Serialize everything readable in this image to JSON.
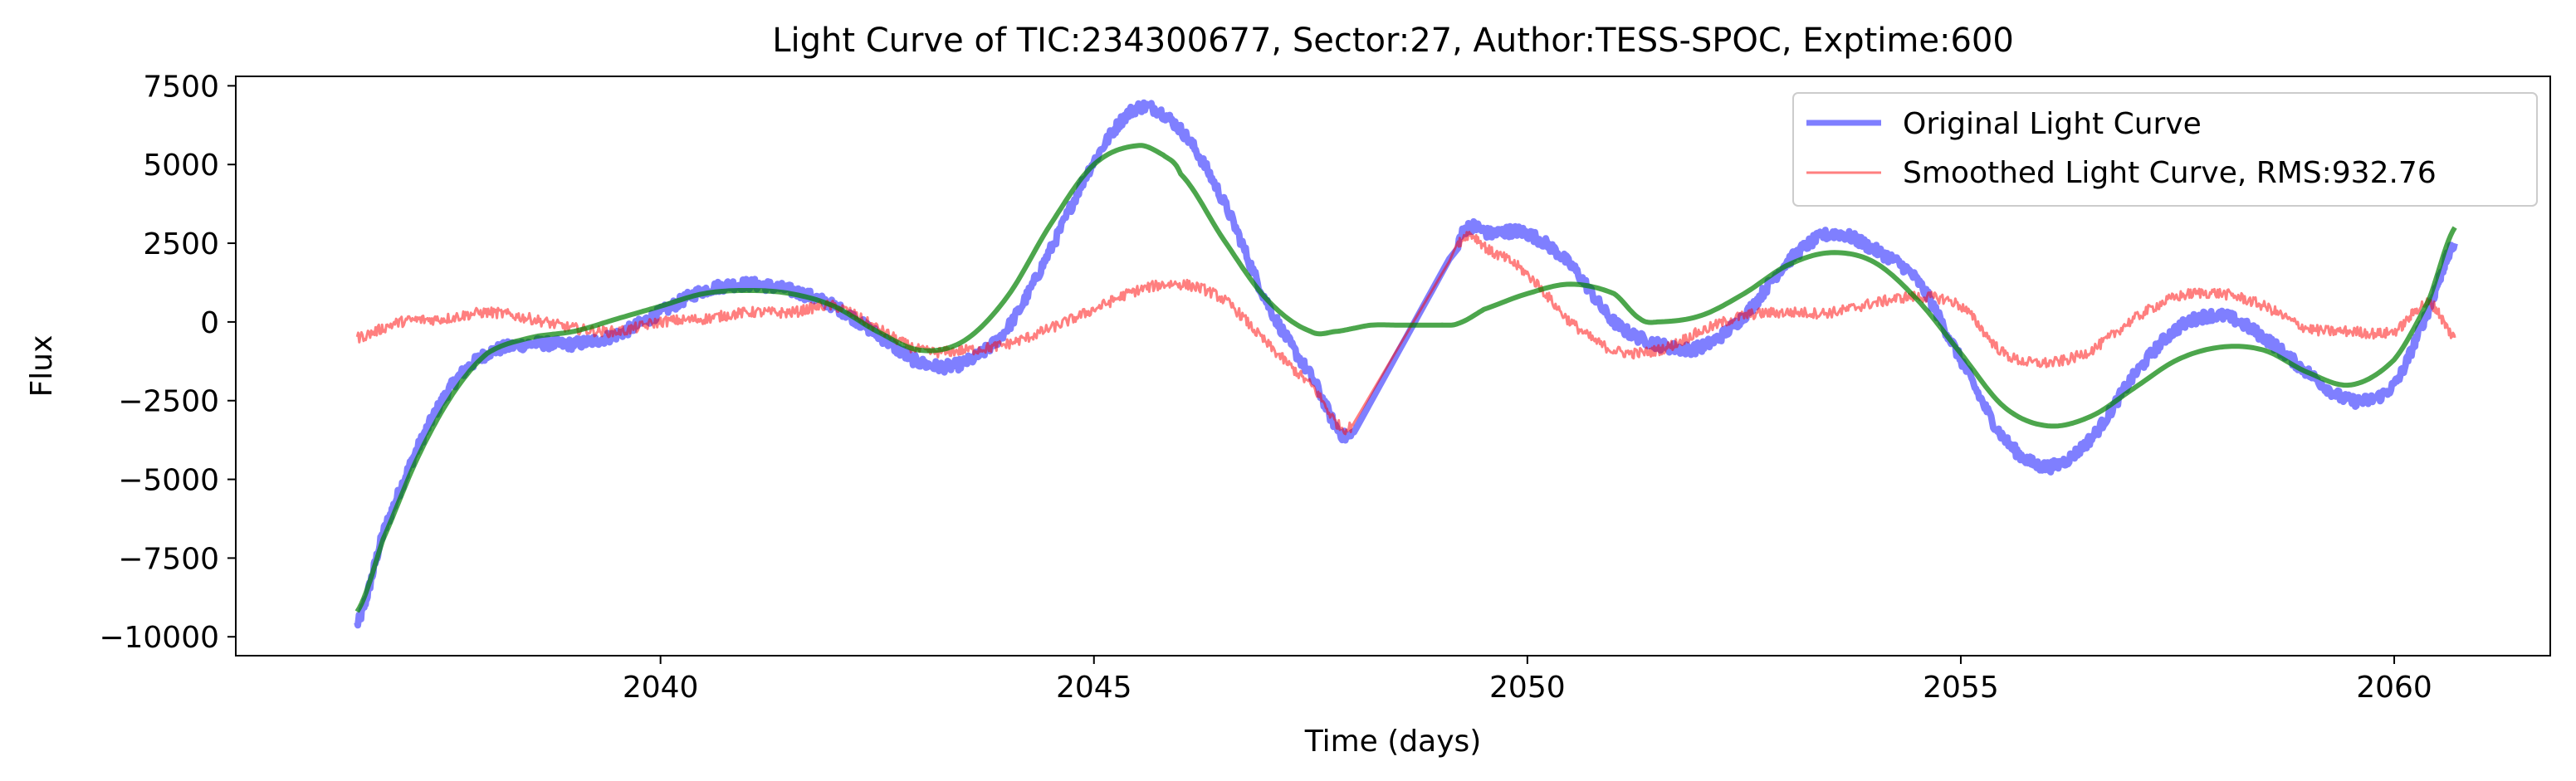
{
  "chart_data": {
    "type": "line",
    "title": "Light Curve of TIC:234300677, Sector:27, Author:TESS-SPOC, Exptime:600",
    "xlabel": "Time (days)",
    "ylabel": "Flux",
    "xlim": [
      2035.1,
      2061.8
    ],
    "ylim": [
      -10600,
      7800
    ],
    "xticks": [
      2040,
      2045,
      2050,
      2055,
      2060
    ],
    "xtick_labels": [
      "2040",
      "2045",
      "2050",
      "2055",
      "2060"
    ],
    "yticks": [
      -10000,
      -7500,
      -5000,
      -2500,
      0,
      2500,
      5000,
      7500
    ],
    "ytick_labels": [
      "−10000",
      "−7500",
      "−5000",
      "−2500",
      "0",
      "2500",
      "5000",
      "7500"
    ],
    "grid": false,
    "legend_position": "top-right",
    "series": [
      {
        "name": "Original Light Curve",
        "color": "#0000ff",
        "opacity": 0.5,
        "noise": 180,
        "x": [
          2036.5,
          2036.8,
          2037.2,
          2037.6,
          2038.0,
          2038.5,
          2039.0,
          2039.5,
          2040.0,
          2040.5,
          2041.0,
          2041.5,
          2042.0,
          2042.5,
          2043.0,
          2043.5,
          2044.0,
          2044.5,
          2045.0,
          2045.5,
          2046.0,
          2046.5,
          2047.0,
          2047.5,
          2048.0,
          2049.2,
          2049.6,
          2050.0,
          2050.5,
          2051.0,
          2051.5,
          2052.0,
          2052.5,
          2053.0,
          2053.5,
          2054.0,
          2054.5,
          2055.0,
          2055.5,
          2056.0,
          2056.5,
          2057.0,
          2057.5,
          2058.0,
          2058.5,
          2059.0,
          2059.5,
          2060.0,
          2060.4,
          2060.7
        ],
        "y": [
          -9600,
          -6700,
          -4000,
          -2000,
          -1000,
          -700,
          -700,
          -400,
          300,
          1000,
          1200,
          1000,
          500,
          -400,
          -1300,
          -1300,
          -200,
          2300,
          5100,
          6800,
          6100,
          3800,
          600,
          -1700,
          -3500,
          2500,
          2800,
          2800,
          1800,
          0,
          -700,
          -800,
          200,
          1900,
          2800,
          2300,
          1300,
          -1200,
          -3700,
          -4600,
          -3700,
          -1700,
          -200,
          200,
          -500,
          -1600,
          -2500,
          -2000,
          400,
          2500
        ]
      },
      {
        "name": "Smoothed Light Curve, RMS:932.76",
        "color": "#ff0000",
        "opacity": 0.5,
        "noise": 170,
        "x": [
          2036.5,
          2037.0,
          2037.5,
          2038.0,
          2038.5,
          2039.0,
          2039.5,
          2040.0,
          2040.5,
          2041.0,
          2041.5,
          2042.0,
          2042.5,
          2043.0,
          2043.5,
          2044.0,
          2044.5,
          2045.0,
          2045.5,
          2046.0,
          2046.5,
          2047.0,
          2047.5,
          2048.0,
          2049.2,
          2049.6,
          2050.0,
          2050.5,
          2051.0,
          2051.5,
          2052.0,
          2052.5,
          2053.0,
          2053.5,
          2054.0,
          2054.5,
          2055.0,
          2055.5,
          2056.0,
          2056.5,
          2057.0,
          2057.5,
          2058.0,
          2058.5,
          2059.0,
          2059.5,
          2060.0,
          2060.4,
          2060.7
        ],
        "y": [
          -500,
          0,
          100,
          300,
          100,
          -200,
          -300,
          0,
          100,
          300,
          300,
          500,
          -200,
          -900,
          -900,
          -700,
          -200,
          400,
          1000,
          1200,
          700,
          -700,
          -2000,
          -3200,
          2400,
          2200,
          1500,
          0,
          -900,
          -900,
          -300,
          200,
          300,
          300,
          600,
          800,
          500,
          -1000,
          -1300,
          -900,
          100,
          800,
          900,
          500,
          -200,
          -300,
          -300,
          600,
          -500
        ]
      },
      {
        "name": "",
        "color": "#008000",
        "opacity": 0.7,
        "noise": 0,
        "x": [
          2036.5,
          2036.8,
          2037.2,
          2037.6,
          2038.0,
          2038.5,
          2039.0,
          2039.5,
          2040.0,
          2040.5,
          2041.0,
          2041.5,
          2042.0,
          2042.5,
          2043.0,
          2043.5,
          2044.0,
          2044.5,
          2045.0,
          2045.5,
          2045.8,
          2046.0,
          2046.5,
          2047.0,
          2047.5,
          2047.8,
          2048.0,
          2048.2,
          2048.5,
          2049.0,
          2049.2,
          2049.5,
          2050.0,
          2050.5,
          2051.0,
          2051.3,
          2051.5,
          2052.0,
          2052.5,
          2053.0,
          2053.5,
          2054.0,
          2054.5,
          2055.0,
          2055.5,
          2056.0,
          2056.5,
          2057.0,
          2057.5,
          2058.0,
          2058.5,
          2059.0,
          2059.5,
          2060.0,
          2060.4,
          2060.7
        ],
        "y": [
          -9200,
          -6900,
          -4300,
          -2300,
          -1000,
          -500,
          -300,
          100,
          500,
          900,
          1000,
          900,
          500,
          -300,
          -900,
          -600,
          800,
          3100,
          5000,
          5600,
          5300,
          4700,
          2600,
          700,
          -300,
          -300,
          -200,
          -100,
          -100,
          -100,
          -50,
          400,
          900,
          1200,
          900,
          100,
          0,
          200,
          900,
          1800,
          2200,
          1900,
          700,
          -1000,
          -2700,
          -3300,
          -3000,
          -2100,
          -1200,
          -800,
          -900,
          -1600,
          -2000,
          -1200,
          700,
          3000
        ]
      }
    ]
  }
}
